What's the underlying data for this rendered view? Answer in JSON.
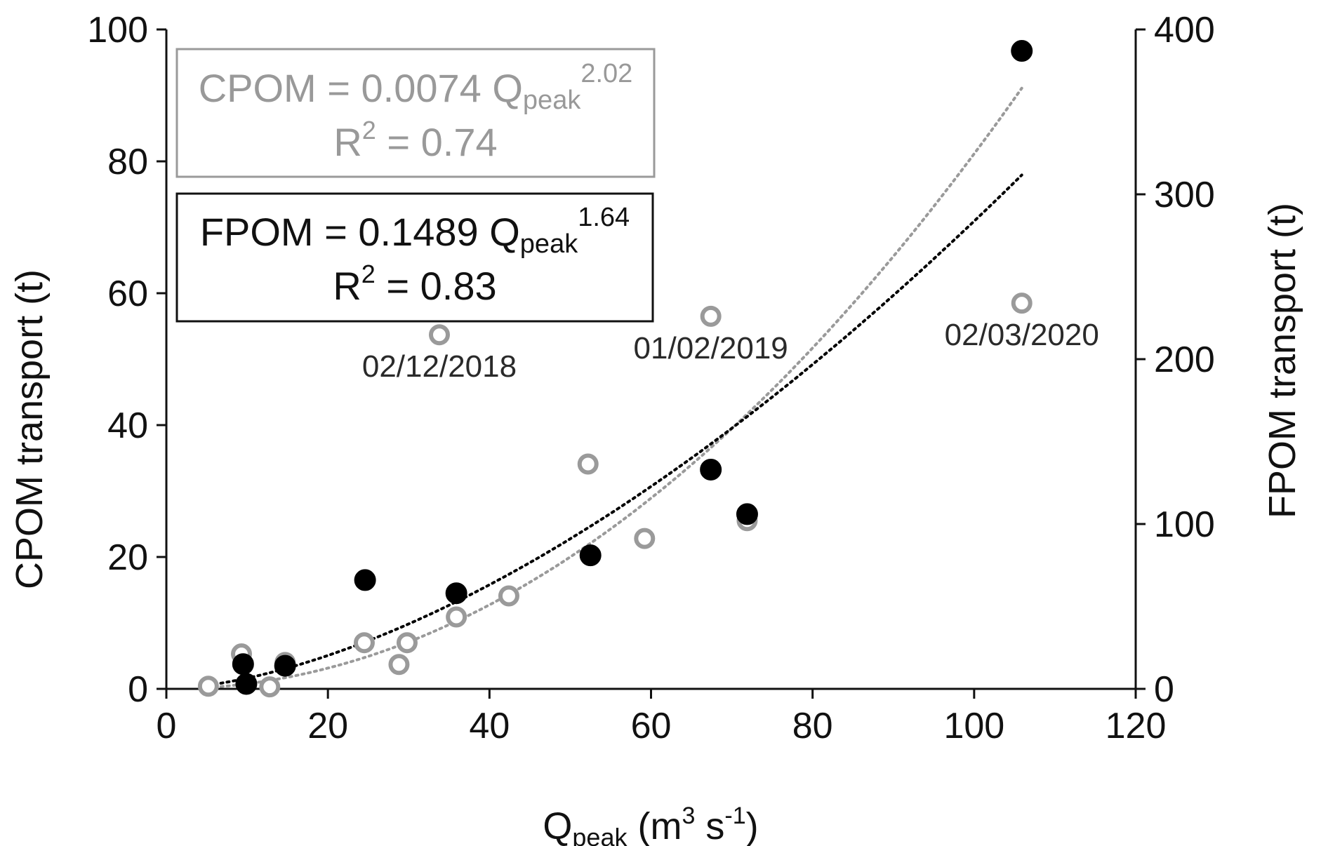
{
  "chart_data": {
    "type": "scatter",
    "xlabel": {
      "base": "Q",
      "sub": "peak",
      "units_pre": " (m",
      "sup1": "3",
      "units_mid": " s",
      "sup2": "-1",
      "units_post": ")"
    },
    "ylabel_left": "CPOM transport (t)",
    "ylabel_right": "FPOM transport (t)",
    "xlim": [
      0,
      120
    ],
    "ylim_left": [
      0,
      100
    ],
    "ylim_right": [
      0,
      400
    ],
    "x_ticks": [
      "0",
      "20",
      "40",
      "60",
      "80",
      "100",
      "120"
    ],
    "y_left_ticks": [
      "0",
      "20",
      "40",
      "60",
      "80",
      "100"
    ],
    "y_right_ticks": [
      "0",
      "100",
      "200",
      "300",
      "400"
    ],
    "series": [
      {
        "name": "CPOM",
        "axis": "left",
        "marker": "open-circle",
        "color": "#9a9a9a",
        "points": [
          {
            "x": 5.2,
            "y": 0.4
          },
          {
            "x": 9.3,
            "y": 5.3
          },
          {
            "x": 12.8,
            "y": 0.3
          },
          {
            "x": 14.7,
            "y": 4.0
          },
          {
            "x": 24.5,
            "y": 7.0
          },
          {
            "x": 28.8,
            "y": 3.7
          },
          {
            "x": 29.8,
            "y": 7.0
          },
          {
            "x": 33.8,
            "y": 53.7
          },
          {
            "x": 35.9,
            "y": 10.9
          },
          {
            "x": 42.4,
            "y": 14.1
          },
          {
            "x": 52.2,
            "y": 34.1
          },
          {
            "x": 59.2,
            "y": 22.8
          },
          {
            "x": 67.4,
            "y": 56.5
          },
          {
            "x": 71.9,
            "y": 25.5
          },
          {
            "x": 105.9,
            "y": 58.5
          }
        ]
      },
      {
        "name": "FPOM",
        "axis": "right",
        "marker": "filled-circle",
        "color": "#000000",
        "points": [
          {
            "x": 9.5,
            "y": 15.0
          },
          {
            "x": 9.9,
            "y": 3.0
          },
          {
            "x": 14.7,
            "y": 14.0
          },
          {
            "x": 24.6,
            "y": 66.0
          },
          {
            "x": 35.9,
            "y": 58.0
          },
          {
            "x": 52.5,
            "y": 81.0
          },
          {
            "x": 67.4,
            "y": 133.0
          },
          {
            "x": 71.9,
            "y": 106.0
          },
          {
            "x": 105.9,
            "y": 387.0
          }
        ]
      }
    ],
    "trendlines": [
      {
        "name": "CPOM fit",
        "axis": "left",
        "a": 0.0074,
        "b": 2.02,
        "color": "#9a9a9a",
        "style": "dotted",
        "x_range": [
          5.2,
          105.9
        ]
      },
      {
        "name": "FPOM fit",
        "axis": "right",
        "a": 0.1489,
        "b": 1.64,
        "color": "#000000",
        "style": "dotted",
        "x_range": [
          5.2,
          105.9
        ]
      }
    ],
    "equations": {
      "cpom": {
        "prefix": "CPOM = 0.0074 Q",
        "sub": "peak",
        "sup": "2.02",
        "r2_label": "R",
        "r2_sup": "2",
        "r2_value": " = 0.74"
      },
      "fpom": {
        "prefix": "FPOM = 0.1489 Q",
        "sub": "peak",
        "sup": "1.64",
        "r2_label": "R",
        "r2_sup": "2",
        "r2_value": " = 0.83"
      }
    },
    "annotations": [
      {
        "text": "02/12/2018",
        "x": 33.8,
        "y": 53.7
      },
      {
        "text": "01/02/2019",
        "x": 67.4,
        "y": 56.5
      },
      {
        "text": "02/03/2020",
        "x": 105.9,
        "y": 58.5
      }
    ]
  }
}
